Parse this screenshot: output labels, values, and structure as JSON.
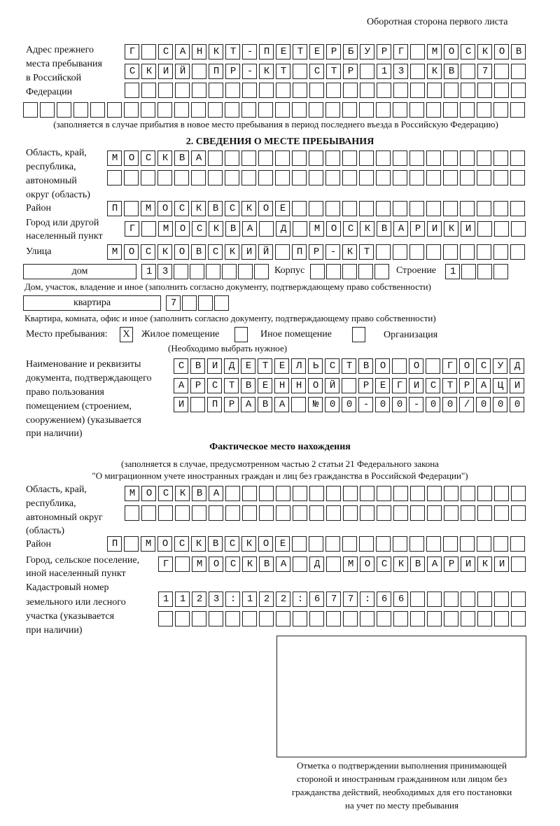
{
  "header": "Оборотная сторона первого листа",
  "previous_address": {
    "label": [
      "Адрес прежнего",
      "места пребывания",
      "в Российской",
      "Федерации"
    ],
    "rows": [
      "Г САНКТ-ПЕТЕРБУРГ МОСКОВ",
      "СКИЙ ПР-КТ СТР 13 КВ 7  ",
      "",
      ""
    ],
    "note": "(заполняется в случае прибытия в новое место пребывания в период последнего въезда в Российскую Федерацию)"
  },
  "section2": {
    "title": "2. СВЕДЕНИЯ О МЕСТЕ ПРЕБЫВАНИЯ",
    "region_label": [
      "Область, край,",
      "республика,",
      "автономный",
      "округ (область)"
    ],
    "region_rows": [
      "МОСКВА",
      ""
    ],
    "district_label": "Район",
    "district": "П МОСКВСКОЕ",
    "city_label": [
      "Город или другой",
      "населенный пункт"
    ],
    "city": "Г МОСКВА Д МОСКВАРИКИ",
    "street_label": "Улица",
    "street": "МОСКОВСКИЙ ПР-КТ",
    "house_type": "дом",
    "house_number": "13",
    "korpus_label": "Корпус",
    "korpus": "",
    "building_label": "Строение",
    "building": "1",
    "house_note": "Дом, участок, владение и иное (заполнить согласно документу, подтверждающему право собственности)",
    "apartment_type": "квартира",
    "apartment_number": "7",
    "apartment_note": "Квартира, комната, офис и иное (заполнить согласно документу, подтверждающему право собственности)",
    "stay_place_label": "Место пребывания:",
    "options": [
      {
        "label": "Жилое помещение",
        "checked": true,
        "mark": "X"
      },
      {
        "label": "Иное помещение",
        "checked": false
      },
      {
        "label": "Организация",
        "checked": false
      }
    ],
    "options_note": "(Необходимо выбрать нужное)",
    "document_label": [
      "Наименование и реквизиты",
      "документа, подтверждающего",
      "право пользования",
      "помещением (строением,",
      "сооружением) (указывается",
      "при наличии)"
    ],
    "document_rows": [
      "СВИДЕТЕЛЬСТВО О ГОСУД",
      "АРСТВЕННОЙ РЕГИСТРАЦИ",
      "И ПРАВА №00-00-00/000"
    ]
  },
  "actual": {
    "title": "Фактическое место нахождения",
    "note": [
      "(заполняется в случае, предусмотренном частью 2 статьи 21 Федерального закона",
      "\"О миграционном учете иностранных граждан и лиц без гражданства в Российской Федерации\")"
    ],
    "region_label": [
      "Область, край,",
      "республика,",
      "автономный округ",
      "(область)"
    ],
    "region_rows": [
      "МОСКВА",
      ""
    ],
    "district_label": "Район",
    "district": "П МОСКВСКОЕ",
    "city_label": [
      "Город, сельское поселение,",
      "иной населенный пункт"
    ],
    "city": "Г МОСКВА Д МОСКВАРИКИ",
    "cadastral_label": [
      "Кадастровый номер",
      "земельного или лесного",
      "участка (указывается",
      "при наличии)"
    ],
    "cadastral_rows": [
      "1123:122:677:66",
      ""
    ]
  },
  "stamp_caption": [
    "Отметка о подтверждении выполнения принимающей",
    "стороной и иностранным гражданином или лицом без",
    "гражданства действий, необходимых для его постановки",
    "на учет по месту пребывания"
  ]
}
